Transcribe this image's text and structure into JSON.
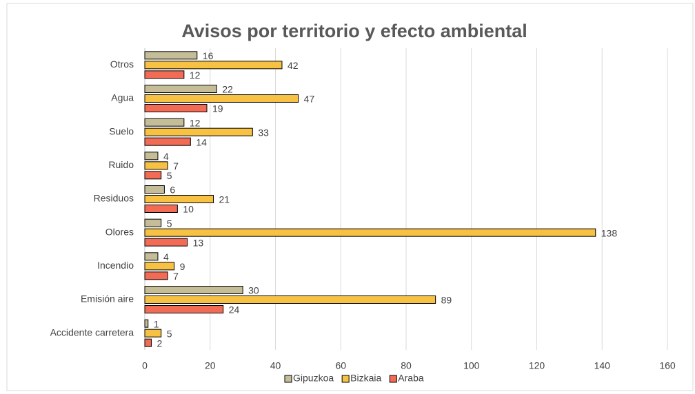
{
  "chart_data": {
    "type": "barh",
    "title": "Avisos por territorio y efecto ambiental",
    "categories": [
      "Otros",
      "Agua",
      "Suelo",
      "Ruido",
      "Residuos",
      "Olores",
      "Incendio",
      "Emisión aire",
      "Accidente carretera"
    ],
    "series": [
      {
        "name": "Gipuzkoa",
        "color": "#c4bd97",
        "values": [
          16,
          22,
          12,
          4,
          6,
          5,
          4,
          30,
          1
        ]
      },
      {
        "name": "Bizkaia",
        "color": "#f7c143",
        "values": [
          42,
          47,
          33,
          7,
          21,
          138,
          9,
          89,
          5
        ]
      },
      {
        "name": "Araba",
        "color": "#f26b55",
        "values": [
          12,
          19,
          14,
          5,
          10,
          13,
          7,
          24,
          2
        ]
      }
    ],
    "xlim": [
      0,
      160
    ],
    "xticks": [
      0,
      20,
      40,
      60,
      80,
      100,
      120,
      140,
      160
    ],
    "grid": true,
    "legend": "bottom"
  }
}
